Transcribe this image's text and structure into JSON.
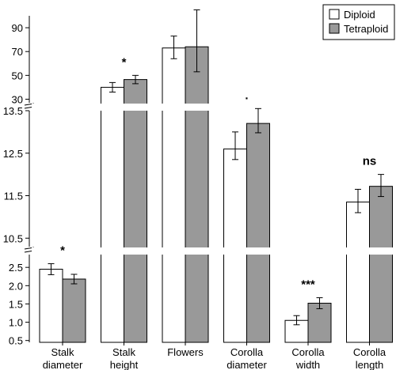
{
  "chart_data": {
    "type": "bar",
    "categories": [
      "Stalk\ndiameter",
      "Stalk\nheight",
      "Flowers",
      "Corolla\ndiameter",
      "Corolla\nwidth",
      "Corolla\nlength"
    ],
    "series": [
      {
        "name": "Diploid",
        "color": "#ffffff",
        "values": [
          2.45,
          40,
          73,
          12.6,
          1.05,
          11.35
        ],
        "err_low": [
          2.3,
          36,
          64,
          12.35,
          0.93,
          11.1
        ],
        "err_high": [
          2.6,
          44,
          83,
          13.0,
          1.18,
          11.65
        ]
      },
      {
        "name": "Tetraploid",
        "color": "#999999",
        "values": [
          2.18,
          46.5,
          74,
          13.2,
          1.52,
          11.72
        ],
        "err_low": [
          2.05,
          43,
          53,
          12.98,
          1.37,
          11.48
        ],
        "err_high": [
          2.31,
          50,
          105,
          13.55,
          1.67,
          12.0
        ]
      }
    ],
    "panels": [
      {
        "segment": "top",
        "ylim": [
          27,
          100
        ],
        "ticks": [
          "30",
          "50",
          "70",
          "90"
        ]
      },
      {
        "segment": "middle",
        "ylim": [
          10.3,
          13.5
        ],
        "ticks": [
          "10.5",
          "11.5",
          "12.5",
          "13.5"
        ]
      },
      {
        "segment": "bottom",
        "ylim": [
          0.45,
          2.85
        ],
        "ticks": [
          "0.5",
          "1.0",
          "1.5",
          "2.0",
          "2.5"
        ]
      }
    ],
    "significance": [
      "*",
      "*",
      "",
      ".",
      "***",
      "ns"
    ],
    "bar_start": [
      0,
      0,
      0,
      10.3,
      0,
      10.3
    ],
    "legend": {
      "position": "top-right",
      "items": [
        "Diploid",
        "Tetraploid"
      ]
    },
    "xlabel": "",
    "ylabel": "",
    "title": ""
  }
}
